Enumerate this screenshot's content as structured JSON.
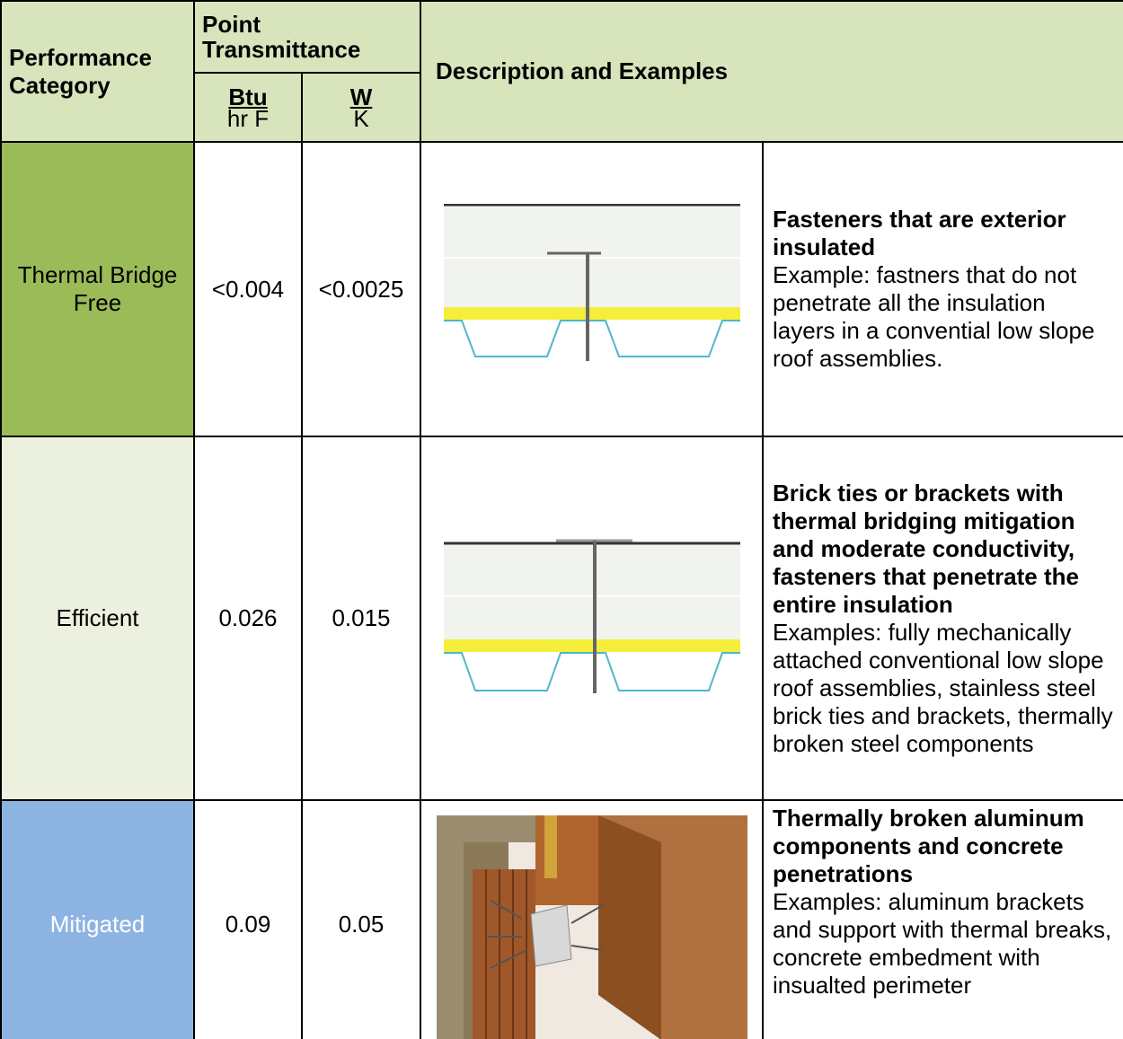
{
  "table": {
    "header": {
      "category": "Performance Category",
      "transmittance": "Point Transmittance",
      "units": [
        {
          "numerator": "Btu",
          "denominator": "hr F"
        },
        {
          "numerator": "W",
          "denominator": "K"
        }
      ],
      "description": "Description and Examples"
    },
    "rows": [
      {
        "category": "Thermal Bridge Free",
        "btu": "<0.004",
        "w": "<0.0025",
        "title": "Fasteners that are exterior insulated",
        "example": "Example: fastners that do not penetrate all the insulation layers in a convential low slope roof assemblies."
      },
      {
        "category": "Efficient",
        "btu": "0.026",
        "w": "0.015",
        "title": "Brick ties or brackets with thermal bridging mitigation and moderate conductivity, fasteners that penetrate the entire insulation",
        "example": "Examples: fully mechanically attached conventional low slope roof assemblies, stainless steel brick ties and brackets, thermally broken steel components"
      },
      {
        "category": "Mitigated",
        "btu": "0.09",
        "w": "0.05",
        "title": "Thermally broken aluminum components and concrete penetrations",
        "example": "Examples: aluminum brackets and support with thermal breaks, concrete embedment with insualted perimeter"
      }
    ]
  }
}
